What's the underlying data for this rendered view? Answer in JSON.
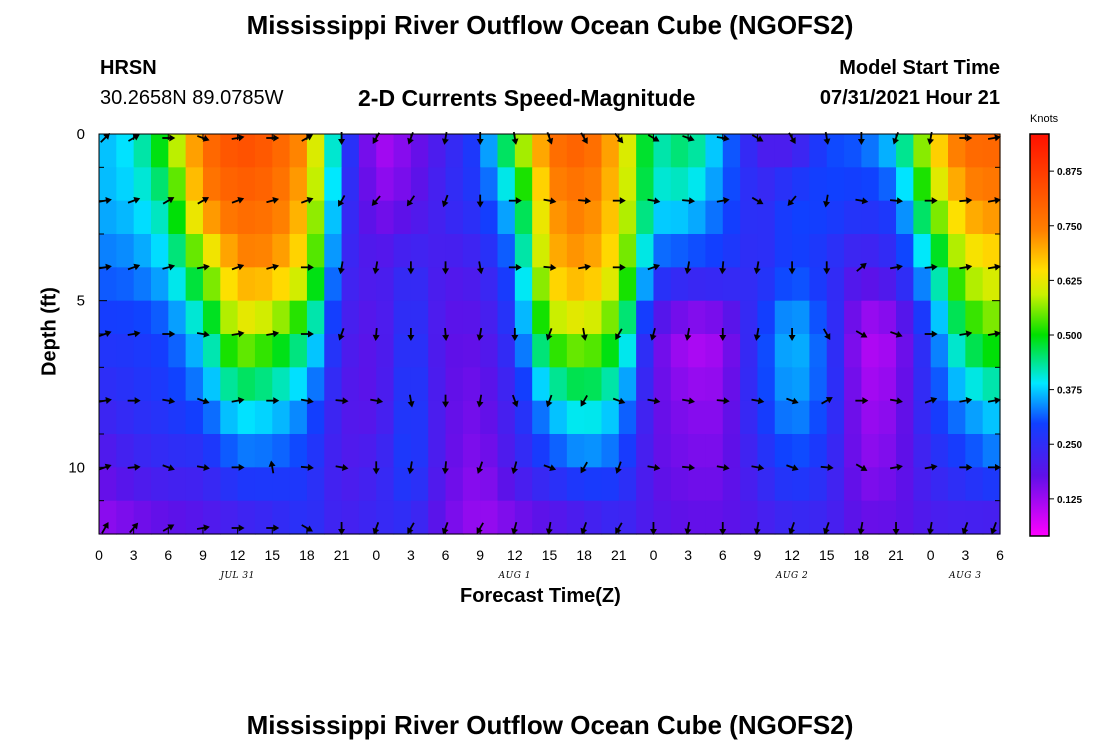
{
  "header": {
    "title": "Mississippi River Outflow Ocean Cube (NGOFS2)",
    "station": "HRSN",
    "coords": "30.2658N  89.0785W",
    "subtitle": "2-D Currents Speed-Magnitude",
    "model_start_label": "Model Start Time",
    "model_start_value": "07/31/2021 Hour 21"
  },
  "footer": {
    "title": "Mississippi River Outflow Ocean Cube (NGOFS2)"
  },
  "chart_data": {
    "type": "heatmap",
    "title": "2-D Currents Speed-Magnitude",
    "xlabel": "Forecast Time(Z)",
    "ylabel": "Depth (ft)",
    "x_ticks": [
      "0",
      "3",
      "6",
      "9",
      "12",
      "15",
      "18",
      "21",
      "0",
      "3",
      "6",
      "9",
      "12",
      "15",
      "18",
      "21",
      "0",
      "3",
      "6",
      "9",
      "12",
      "15",
      "18",
      "21",
      "0",
      "3",
      "6"
    ],
    "x_range_hours": [
      0,
      78
    ],
    "date_labels": [
      {
        "label": "JUL 31",
        "hour": 12
      },
      {
        "label": "AUG 1",
        "hour": 36
      },
      {
        "label": "AUG 2",
        "hour": 60
      },
      {
        "label": "AUG 3",
        "hour": 75
      }
    ],
    "y_ticks": [
      "0",
      "5",
      "10"
    ],
    "y_range_ft": [
      0,
      12
    ],
    "y_reversed": true,
    "colorbar": {
      "title": "Knots",
      "ticks": [
        "0.875",
        "0.750",
        "0.625",
        "0.500",
        "0.375",
        "0.250",
        "0.125"
      ],
      "range": [
        0.04,
        0.96
      ]
    },
    "depth_levels_ft": [
      0,
      2,
      4,
      6,
      8,
      10,
      12
    ],
    "time_hours": [
      0,
      3,
      6,
      9,
      12,
      15,
      18,
      21,
      24,
      27,
      30,
      33,
      36,
      39,
      42,
      45,
      48,
      51,
      54,
      57,
      60,
      63,
      66,
      69,
      72,
      75,
      78
    ],
    "speed_knots": [
      [
        0.36,
        0.4,
        0.55,
        0.78,
        0.85,
        0.82,
        0.72,
        0.32,
        0.1,
        0.15,
        0.22,
        0.3,
        0.55,
        0.78,
        0.82,
        0.68,
        0.42,
        0.48,
        0.35,
        0.2,
        0.18,
        0.3,
        0.32,
        0.4,
        0.65,
        0.8,
        0.8
      ],
      [
        0.36,
        0.38,
        0.45,
        0.74,
        0.8,
        0.78,
        0.68,
        0.28,
        0.14,
        0.17,
        0.24,
        0.28,
        0.4,
        0.72,
        0.76,
        0.66,
        0.4,
        0.4,
        0.32,
        0.24,
        0.3,
        0.3,
        0.28,
        0.3,
        0.55,
        0.72,
        0.75
      ],
      [
        0.32,
        0.33,
        0.38,
        0.55,
        0.72,
        0.72,
        0.62,
        0.24,
        0.2,
        0.25,
        0.2,
        0.22,
        0.32,
        0.68,
        0.72,
        0.62,
        0.3,
        0.28,
        0.28,
        0.24,
        0.3,
        0.26,
        0.2,
        0.24,
        0.4,
        0.6,
        0.64
      ],
      [
        0.28,
        0.28,
        0.3,
        0.4,
        0.6,
        0.55,
        0.45,
        0.22,
        0.18,
        0.28,
        0.18,
        0.18,
        0.28,
        0.55,
        0.6,
        0.5,
        0.18,
        0.1,
        0.12,
        0.28,
        0.38,
        0.3,
        0.1,
        0.12,
        0.3,
        0.48,
        0.55
      ],
      [
        0.24,
        0.26,
        0.28,
        0.32,
        0.42,
        0.4,
        0.34,
        0.2,
        0.18,
        0.3,
        0.18,
        0.16,
        0.24,
        0.38,
        0.44,
        0.38,
        0.18,
        0.14,
        0.14,
        0.28,
        0.36,
        0.3,
        0.12,
        0.14,
        0.28,
        0.36,
        0.4
      ],
      [
        0.18,
        0.22,
        0.24,
        0.24,
        0.3,
        0.3,
        0.28,
        0.2,
        0.22,
        0.3,
        0.18,
        0.14,
        0.22,
        0.28,
        0.32,
        0.3,
        0.18,
        0.16,
        0.16,
        0.24,
        0.3,
        0.26,
        0.14,
        0.16,
        0.24,
        0.28,
        0.32
      ],
      [
        0.12,
        0.14,
        0.16,
        0.18,
        0.2,
        0.22,
        0.26,
        0.22,
        0.24,
        0.24,
        0.16,
        0.12,
        0.14,
        0.16,
        0.18,
        0.22,
        0.2,
        0.18,
        0.18,
        0.2,
        0.22,
        0.22,
        0.18,
        0.18,
        0.2,
        0.2,
        0.18
      ]
    ],
    "current_direction_deg": [
      [
        45,
        60,
        90,
        110,
        80,
        90,
        60,
        180,
        210,
        200,
        190,
        180,
        170,
        160,
        150,
        140,
        120,
        110,
        100,
        120,
        150,
        170,
        180,
        200,
        190,
        90,
        80
      ],
      [
        80,
        70,
        60,
        60,
        70,
        75,
        70,
        210,
        220,
        215,
        200,
        180,
        90,
        100,
        95,
        90,
        100,
        95,
        80,
        120,
        220,
        190,
        100,
        95,
        90,
        85,
        80
      ],
      [
        80,
        70,
        75,
        80,
        70,
        75,
        90,
        190,
        190,
        180,
        180,
        170,
        90,
        95,
        80,
        90,
        70,
        190,
        185,
        190,
        180,
        180,
        50,
        80,
        85,
        80,
        80
      ],
      [
        70,
        80,
        90,
        100,
        80,
        80,
        90,
        200,
        185,
        180,
        175,
        190,
        180,
        200,
        170,
        210,
        195,
        190,
        180,
        190,
        180,
        150,
        120,
        110,
        90,
        80,
        80
      ],
      [
        80,
        90,
        100,
        110,
        80,
        90,
        100,
        95,
        100,
        170,
        180,
        190,
        160,
        200,
        210,
        110,
        100,
        100,
        95,
        100,
        110,
        60,
        90,
        100,
        70,
        80,
        80
      ],
      [
        70,
        85,
        110,
        100,
        90,
        350,
        95,
        100,
        180,
        190,
        185,
        200,
        195,
        110,
        210,
        200,
        100,
        95,
        100,
        100,
        110,
        95,
        120,
        80,
        80,
        90,
        90
      ],
      [
        30,
        40,
        60,
        80,
        90,
        90,
        120,
        180,
        200,
        210,
        200,
        210,
        195,
        190,
        200,
        210,
        180,
        190,
        180,
        190,
        200,
        200,
        190,
        180,
        190,
        200,
        200
      ]
    ]
  }
}
